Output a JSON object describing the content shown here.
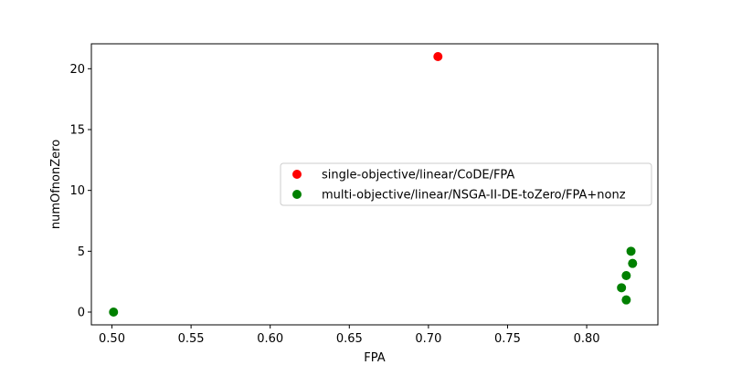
{
  "chart_data": {
    "type": "scatter",
    "title": "",
    "xlabel": "FPA",
    "ylabel": "numOfnonZero",
    "xlim": [
      0.487,
      0.845
    ],
    "ylim": [
      -1.05,
      22.05
    ],
    "xticks": [
      0.5,
      0.55,
      0.6,
      0.65,
      0.7,
      0.75,
      0.8
    ],
    "xtick_labels": [
      "0.50",
      "0.55",
      "0.60",
      "0.65",
      "0.70",
      "0.75",
      "0.80"
    ],
    "yticks": [
      0,
      5,
      10,
      15,
      20
    ],
    "ytick_labels": [
      "0",
      "5",
      "10",
      "15",
      "20"
    ],
    "grid": false,
    "legend_position": "center-right",
    "series": [
      {
        "name": "single-objective/linear/CoDE/FPA",
        "color": "#ff0000",
        "x": [
          0.706
        ],
        "y": [
          21
        ]
      },
      {
        "name": "multi-objective/linear/NSGA-II-DE-toZero/FPA+nonz",
        "color": "#008000",
        "x": [
          0.501,
          0.822,
          0.825,
          0.825,
          0.828,
          0.829
        ],
        "y": [
          0,
          2,
          1,
          3,
          5,
          4
        ]
      }
    ]
  }
}
